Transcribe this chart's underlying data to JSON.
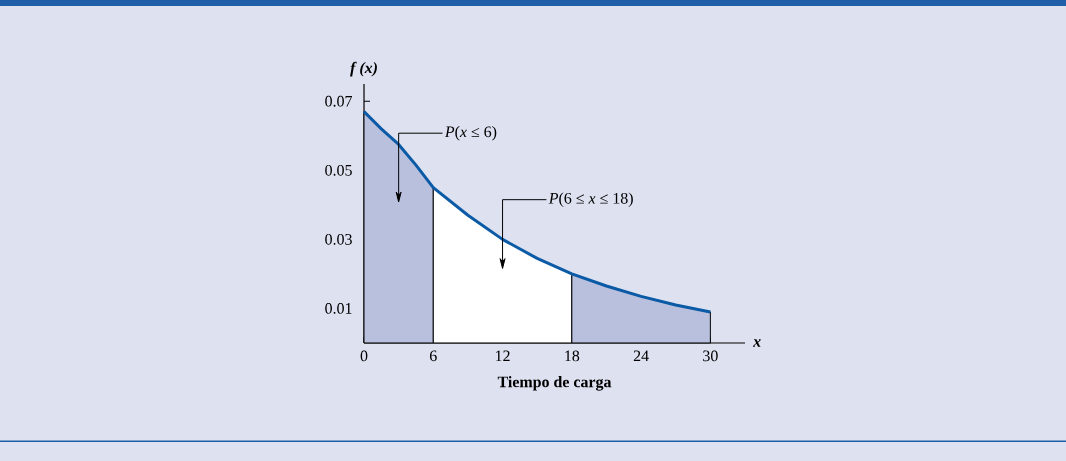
{
  "chart_data": {
    "type": "line",
    "ylabel": "f (x)",
    "xlabel": "Tiempo de carga",
    "xlim": [
      0,
      33
    ],
    "ylim": [
      0,
      0.075
    ],
    "xticks": [
      0,
      6,
      12,
      18,
      24,
      30
    ],
    "yticks": [
      0.01,
      0.03,
      0.05,
      0.07
    ],
    "grid": false,
    "marker": "none",
    "line_style": "solid",
    "series": [
      {
        "type": "area",
        "color": "#b8c0de",
        "x": [
          0,
          1.5,
          3,
          4.5,
          6
        ],
        "values": [
          0.067,
          0.062,
          0.0575,
          0.0515,
          0.045
        ]
      },
      {
        "type": "area",
        "color": "#ffffff",
        "x": [
          6,
          9,
          12,
          15,
          18
        ],
        "values": [
          0.045,
          0.037,
          0.03,
          0.0245,
          0.02
        ]
      },
      {
        "type": "area",
        "color": "#b8c0de",
        "x": [
          18,
          21,
          24,
          27,
          30
        ],
        "values": [
          0.02,
          0.0165,
          0.0135,
          0.011,
          0.009
        ]
      },
      {
        "color": "#0b5aa5",
        "x": [
          0,
          1.5,
          3,
          4.5,
          6,
          9,
          12,
          15,
          18,
          21,
          24,
          27,
          30
        ],
        "values": [
          0.067,
          0.062,
          0.0575,
          0.0515,
          0.045,
          0.037,
          0.03,
          0.0245,
          0.02,
          0.0165,
          0.0135,
          0.011,
          0.009
        ]
      }
    ],
    "annotations": [
      "*P*(*x* ≤ 6)",
      "*P*(6 ≤ *x* ≤ 18)",
      "*x*"
    ]
  }
}
